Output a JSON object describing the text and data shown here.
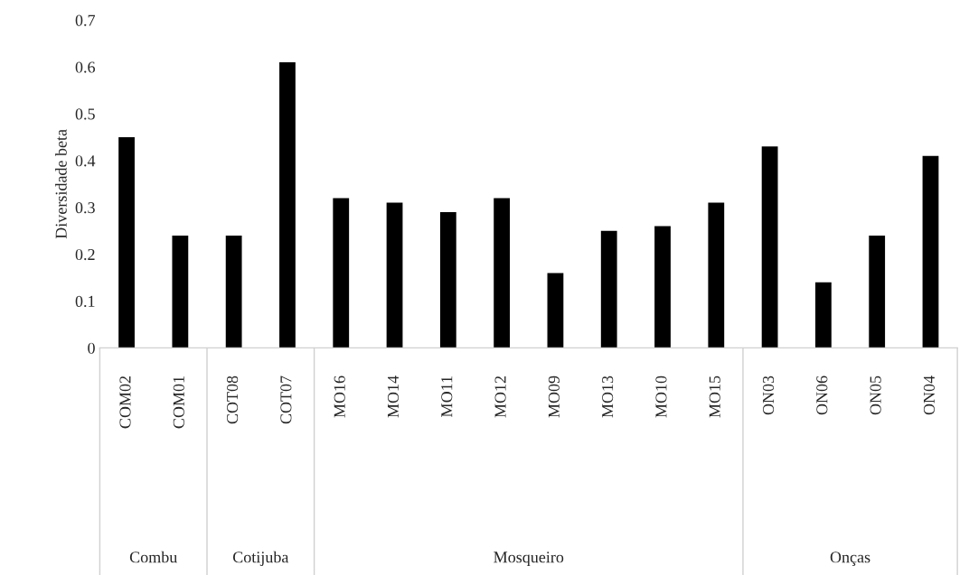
{
  "chart_data": {
    "type": "bar",
    "ylabel": "Diversidade beta",
    "categories": [
      "COM02",
      "COM01",
      "COT08",
      "COT07",
      "MO16",
      "MO14",
      "MO11",
      "MO12",
      "MO09",
      "MO13",
      "MO10",
      "MO15",
      "ON03",
      "ON06",
      "ON05",
      "ON04"
    ],
    "values": [
      0.45,
      0.24,
      0.24,
      0.61,
      0.32,
      0.31,
      0.29,
      0.32,
      0.16,
      0.25,
      0.26,
      0.31,
      0.43,
      0.14,
      0.24,
      0.41
    ],
    "color": "#000000",
    "ylim": [
      0,
      0.7
    ],
    "yticks": [
      0,
      {
        "value": 0.1,
        "label": "0.1"
      },
      {
        "value": 0.2,
        "label": "0.2"
      },
      {
        "value": 0.3,
        "label": "0.3"
      },
      {
        "value": 0.4,
        "label": "0.4"
      },
      {
        "value": 0.5,
        "label": "0.5"
      },
      {
        "value": 0.6,
        "label": "0.6"
      },
      {
        "value": 0.7,
        "label": "0.7"
      }
    ],
    "annotations": [
      "Combu",
      "Cotijuba",
      "Mosqueiro",
      "Onças"
    ]
  }
}
